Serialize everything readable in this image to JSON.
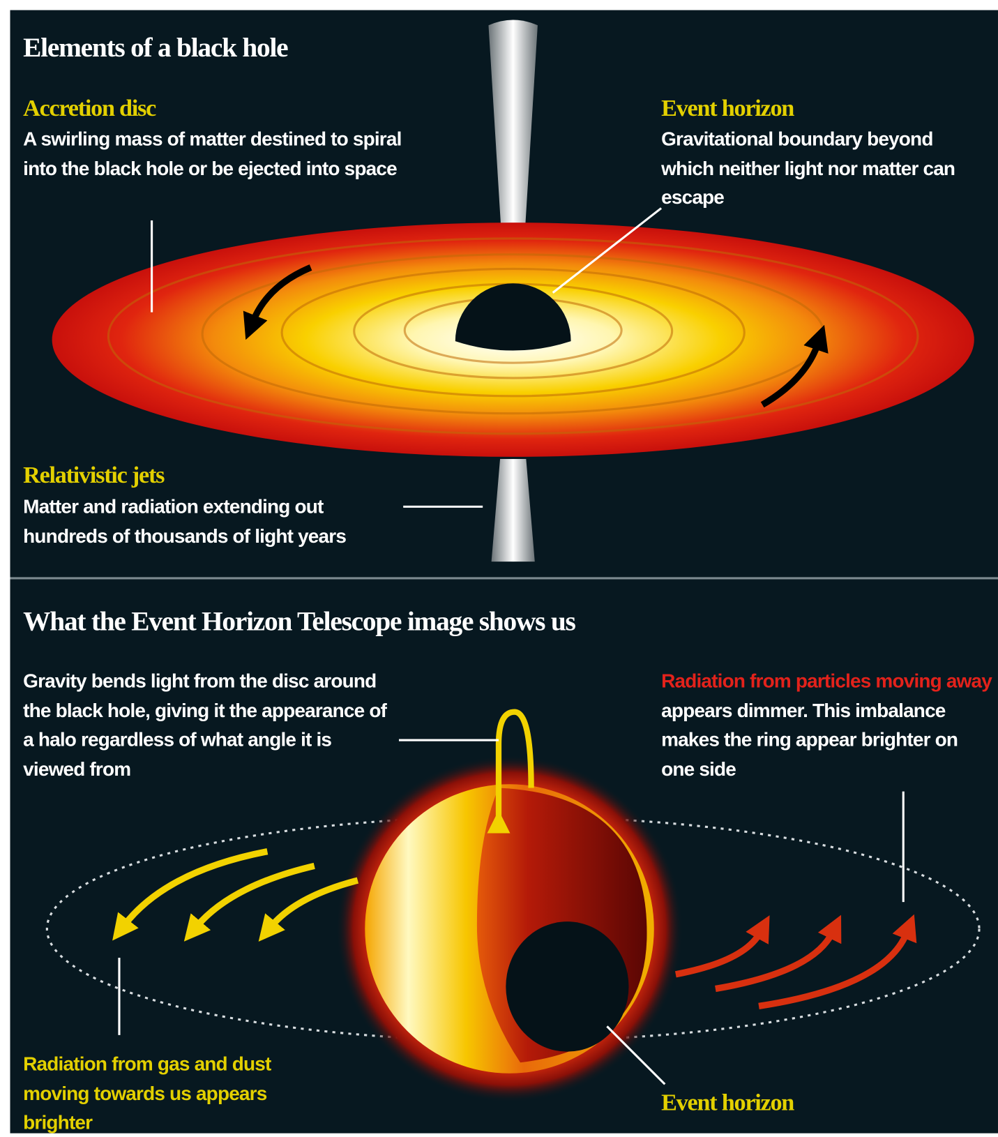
{
  "header": {
    "title": "Elements of a black hole"
  },
  "top_labels": [
    {
      "title": "Accretion disc",
      "text": "A swirling mass of matter destined to spiral into the black hole or be ejected into space"
    },
    {
      "title": "Event horizon",
      "text": "Gravitational boundary beyond which neither light nor matter can escape"
    },
    {
      "title": "Relativistic jets",
      "text": "Matter and radiation extending out hundreds of thousands of light years"
    }
  ],
  "eht": {
    "title": "What the Event Horizon Telescope image shows us",
    "gravity_note": "Gravity bends light from the disc around the black hole, giving it the appearance of a halo regardless of what angle it is viewed from",
    "dimmer_note": {
      "highlight": "Radiation from particles moving away",
      "text": "appears dimmer. This imbalance makes the ring appear brighter on one side"
    },
    "brighter_note": "Radiation from gas and dust moving towards us appears brighter",
    "event_horizon_label": "Event horizon"
  }
}
